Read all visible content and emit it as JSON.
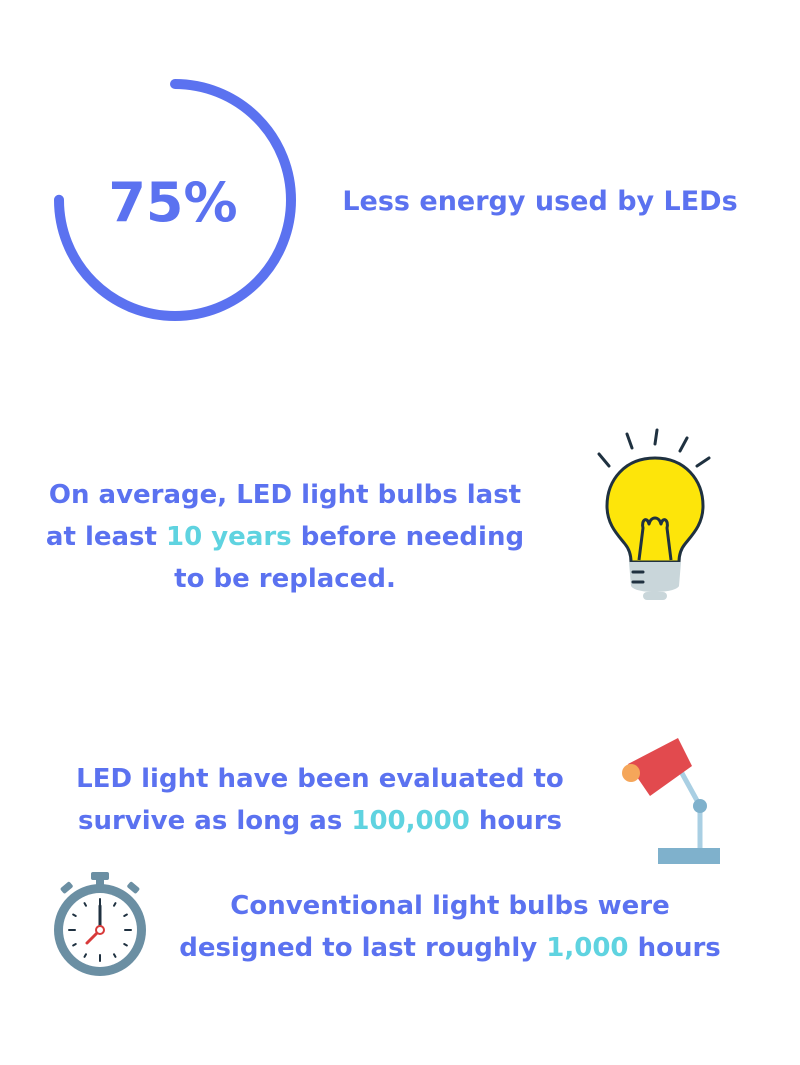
{
  "stat_ring": {
    "value": "75%",
    "progress": 0.75,
    "caption": "Less energy used by LEDs",
    "color": "#5b72f0"
  },
  "bulb_fact": {
    "before": "On average, LED light bulbs last at least ",
    "highlight": "10 years",
    "after": " before needing to be replaced."
  },
  "led_fact": {
    "before": "LED light have been evaluated to survive as long as ",
    "highlight": "100,000",
    "after": " hours"
  },
  "conventional_fact": {
    "before": "Conventional light bulbs were designed to last roughly ",
    "highlight": "1,000",
    "after": " hours"
  },
  "icons": {
    "bulb": "light-bulb-icon",
    "lamp": "desk-lamp-icon",
    "watch": "stopwatch-icon"
  },
  "colors": {
    "text": "#5b72f0",
    "highlight": "#5fd3e0"
  }
}
